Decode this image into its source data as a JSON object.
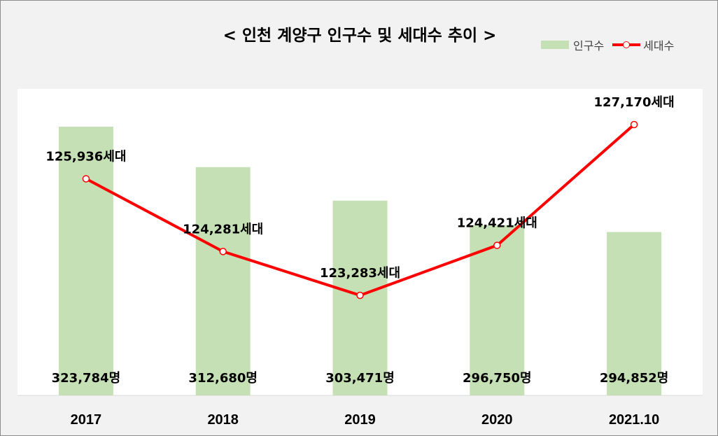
{
  "chart_data": {
    "type": "bar",
    "title": "< 인천 계양구 인구수 및 세대수 추이 >",
    "categories": [
      "2017",
      "2018",
      "2019",
      "2020",
      "2021.10"
    ],
    "series": [
      {
        "name": "인구수",
        "type": "bar",
        "values": [
          323784,
          312680,
          303471,
          296750,
          294852
        ],
        "labels": [
          "323,784명",
          "312,680명",
          "303,471명",
          "296,750명",
          "294,852명"
        ],
        "color": "#c5e0b4"
      },
      {
        "name": "세대수",
        "type": "line",
        "values": [
          125936,
          124281,
          123283,
          124421,
          127170
        ],
        "labels": [
          "125,936세대",
          "124,281세대",
          "123,283세대",
          "124,421세대",
          "127,170세대"
        ],
        "color": "#ff0000"
      }
    ],
    "legend_position": "top-right",
    "grid": false
  }
}
